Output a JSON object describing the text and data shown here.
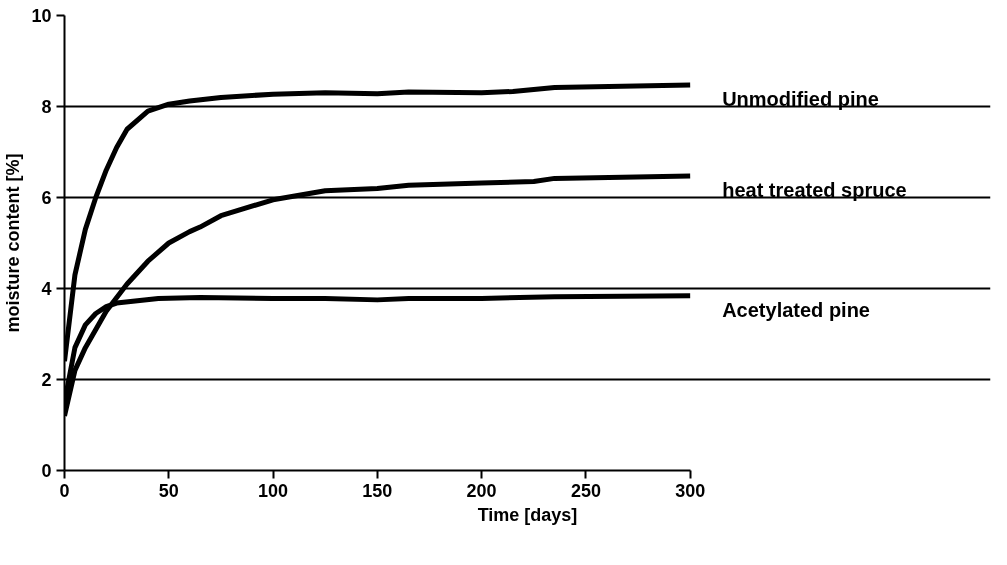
{
  "chart_data": {
    "type": "line",
    "xlabel": "Time [days]",
    "ylabel": "moisture content [%]",
    "xlim": [
      0,
      300
    ],
    "xticks": [
      0,
      50,
      100,
      150,
      200,
      250,
      300
    ],
    "ylim": [
      0,
      10
    ],
    "yticks": [
      0,
      2,
      4,
      6,
      8,
      10
    ],
    "grid": "y",
    "marker": "none",
    "line_style": "solid",
    "series": [
      {
        "name": "Unmodified pine",
        "color": "#000000",
        "x": [
          0,
          5,
          10,
          15,
          20,
          25,
          30,
          40,
          50,
          60,
          75,
          100,
          125,
          150,
          165,
          200,
          215,
          235,
          300
        ],
        "values": [
          2.4,
          4.3,
          5.3,
          6.0,
          6.6,
          7.1,
          7.5,
          7.9,
          8.05,
          8.12,
          8.2,
          8.27,
          8.3,
          8.28,
          8.32,
          8.3,
          8.33,
          8.42,
          8.47
        ]
      },
      {
        "name": "heat treated spruce",
        "color": "#000000",
        "x": [
          0,
          5,
          10,
          20,
          30,
          40,
          50,
          60,
          65,
          75,
          100,
          125,
          150,
          165,
          200,
          225,
          235,
          300
        ],
        "values": [
          1.2,
          2.2,
          2.7,
          3.5,
          4.1,
          4.6,
          5.0,
          5.25,
          5.35,
          5.6,
          5.95,
          6.15,
          6.2,
          6.27,
          6.32,
          6.35,
          6.42,
          6.47
        ]
      },
      {
        "name": "Acetylated pine",
        "color": "#000000",
        "x": [
          0,
          5,
          10,
          15,
          20,
          25,
          35,
          45,
          65,
          100,
          125,
          150,
          165,
          200,
          235,
          300
        ],
        "values": [
          1.5,
          2.7,
          3.2,
          3.45,
          3.6,
          3.68,
          3.73,
          3.78,
          3.8,
          3.78,
          3.78,
          3.75,
          3.78,
          3.78,
          3.82,
          3.84
        ]
      }
    ]
  }
}
